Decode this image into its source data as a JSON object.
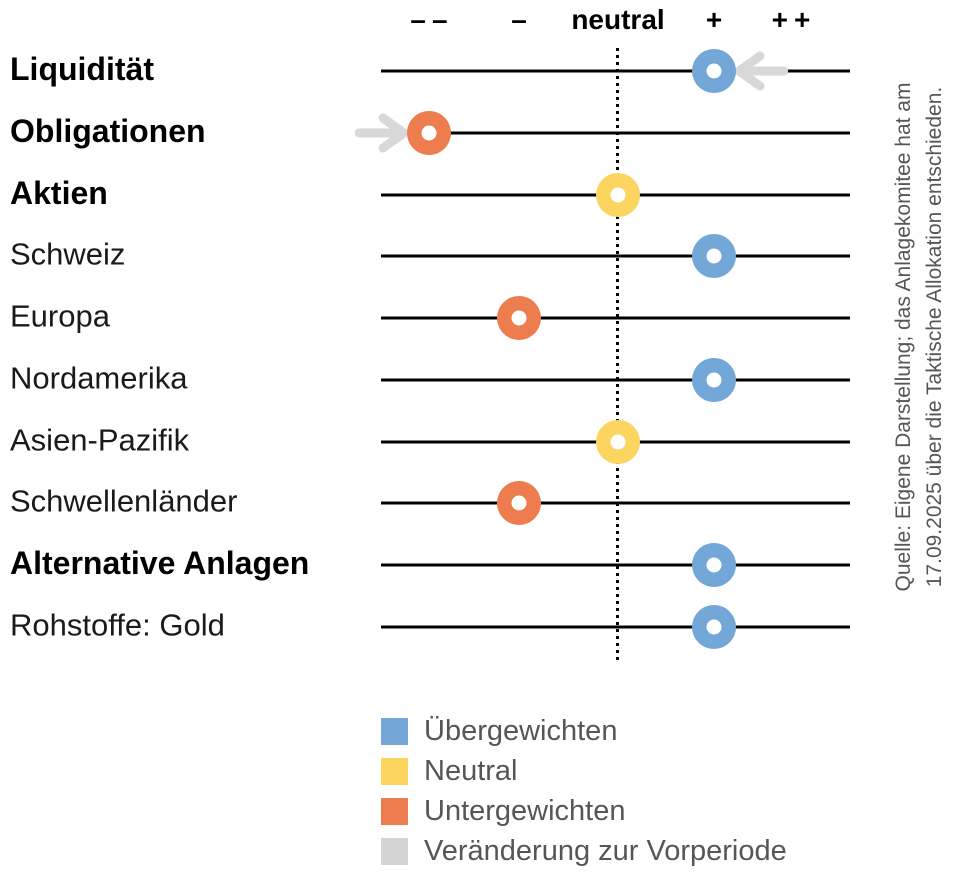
{
  "chart_data": {
    "type": "scatter",
    "subtype": "tactical-asset-allocation-dot-scale",
    "scale": {
      "labels": [
        "––",
        "–",
        "neutral",
        "+",
        "++"
      ],
      "values": [
        "--",
        "-",
        "neutral",
        "+",
        "++"
      ],
      "numeric": [
        -2,
        -1,
        0,
        1,
        2
      ]
    },
    "rows": [
      {
        "label": "Liquidität",
        "bold": true,
        "position": "+",
        "value": 1,
        "status": "Übergewichten",
        "change_arrow": "from-right"
      },
      {
        "label": "Obligationen",
        "bold": true,
        "position": "--",
        "value": -2,
        "status": "Untergewichten",
        "change_arrow": "from-left"
      },
      {
        "label": "Aktien",
        "bold": true,
        "position": "neutral",
        "value": 0,
        "status": "Neutral",
        "change_arrow": null
      },
      {
        "label": "Schweiz",
        "bold": false,
        "position": "+",
        "value": 1,
        "status": "Übergewichten",
        "change_arrow": null
      },
      {
        "label": "Europa",
        "bold": false,
        "position": "-",
        "value": -1,
        "status": "Untergewichten",
        "change_arrow": null
      },
      {
        "label": "Nordamerika",
        "bold": false,
        "position": "+",
        "value": 1,
        "status": "Übergewichten",
        "change_arrow": null
      },
      {
        "label": "Asien-Pazifik",
        "bold": false,
        "position": "neutral",
        "value": 0,
        "status": "Neutral",
        "change_arrow": null
      },
      {
        "label": "Schwellenländer",
        "bold": false,
        "position": "-",
        "value": -1,
        "status": "Untergewichten",
        "change_arrow": null
      },
      {
        "label": "Alternative Anlagen",
        "bold": true,
        "position": "+",
        "value": 1,
        "status": "Übergewichten",
        "change_arrow": null
      },
      {
        "label": "Rohstoffe: Gold",
        "bold": false,
        "position": "+",
        "value": 1,
        "status": "Übergewichten",
        "change_arrow": null
      }
    ],
    "legend": [
      {
        "label": "Übergewichten",
        "color": "#73A7D8"
      },
      {
        "label": "Neutral",
        "color": "#FBD55F"
      },
      {
        "label": "Untergewichten",
        "color": "#ED7C4E"
      },
      {
        "label": "Veränderung zur Vorperiode",
        "color": "#D4D4D4"
      }
    ],
    "source": {
      "line1": "Quelle: Eigene Darstellung; das Anlagekomitee hat am",
      "line2": "17.09.2025 über die Taktische Allokation entschieden."
    },
    "colors": {
      "overweight": "#73A7D8",
      "neutral": "#FBD55F",
      "underweight": "#ED7C4E",
      "change": "#D8D8D8",
      "line": "#000000"
    },
    "layout_hints": {
      "grid": "off",
      "legend_position": "bottom-left",
      "neutral_guide": "dotted-vertical"
    }
  }
}
